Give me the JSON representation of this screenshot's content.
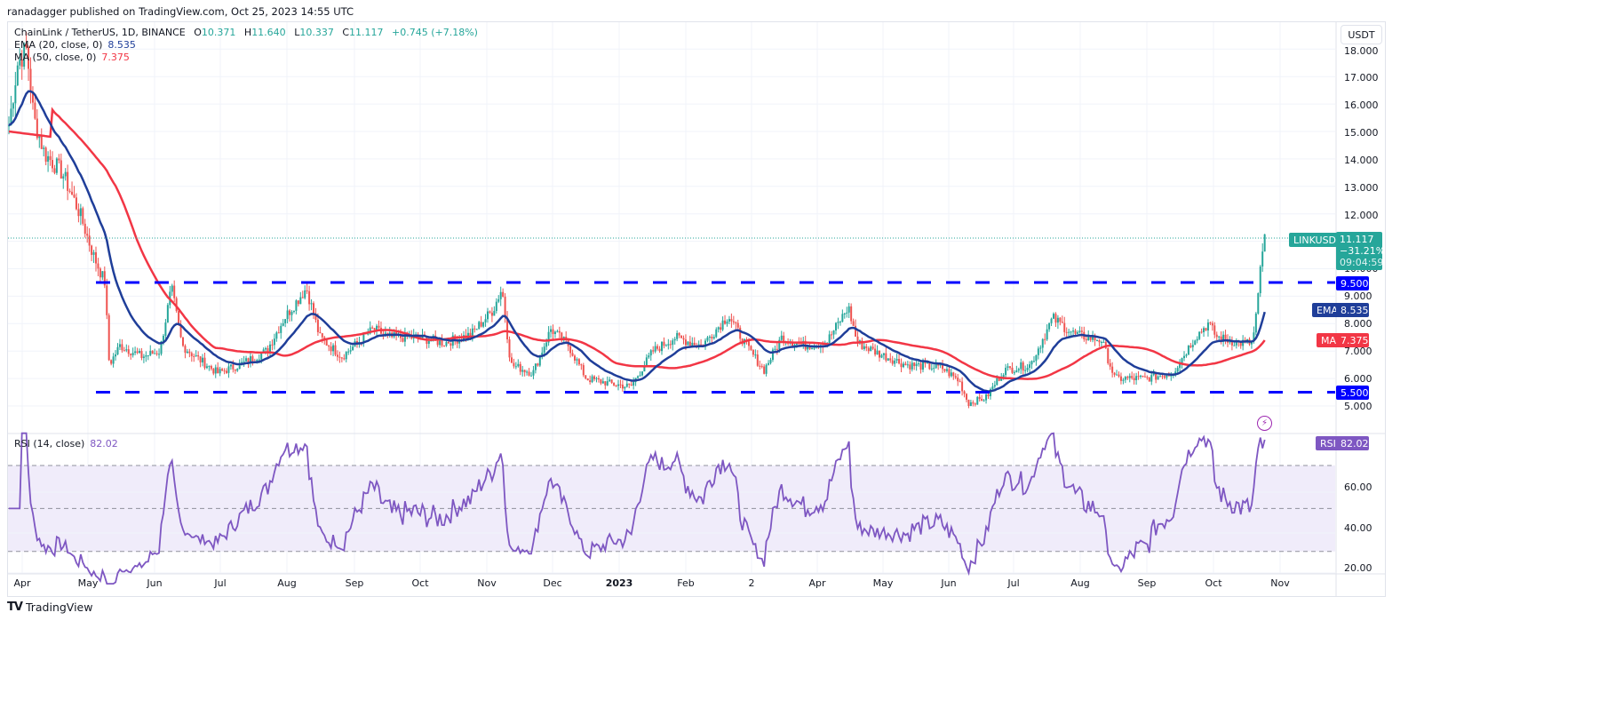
{
  "header": {
    "publisher_line": "ranadagger published on TradingView.com, Oct 25, 2023 14:55 UTC"
  },
  "legend": {
    "symbol": "ChainLink / TetherUS, 1D, BINANCE",
    "open_label": "O",
    "open": "10.371",
    "high_label": "H",
    "high": "11.640",
    "low_label": "L",
    "low": "10.337",
    "close_label": "C",
    "close": "11.117",
    "change": "+0.745 (+7.18%)",
    "ema_label": "EMA (20, close, 0)",
    "ema_value": "8.535",
    "ma_label": "MA (50, close, 0)",
    "ma_value": "7.375",
    "rsi_label": "RSI (14, close)",
    "rsi_value": "82.02"
  },
  "price_axis": {
    "currency": "USDT",
    "ticks": [
      "18.000",
      "17.000",
      "16.000",
      "15.000",
      "14.000",
      "13.000",
      "12.000",
      "10.000",
      "9.000",
      "8.000",
      "7.000",
      "6.000",
      "5.000"
    ]
  },
  "rsi_axis": {
    "ticks": [
      "60.00",
      "40.00",
      "20.00"
    ]
  },
  "time_axis": {
    "labels": [
      "Apr",
      "May",
      "Jun",
      "Jul",
      "Aug",
      "Sep",
      "Oct",
      "Nov",
      "Dec",
      "2023",
      "Feb",
      "2",
      "Apr",
      "May",
      "Jun",
      "Jul",
      "Aug",
      "Sep",
      "Oct",
      "Nov"
    ]
  },
  "tags": {
    "symbol_tag": "LINKUSDT",
    "last_price": "11.117",
    "last_change": "−31.21%",
    "countdown": "09:04:59",
    "resistance": "9.500",
    "support": "5.500",
    "ema_tag_label": "EMA",
    "ema_tag_value": "8.535",
    "ma_tag_label": "MA",
    "ma_tag_value": "7.375",
    "rsi_tag_label": "RSI",
    "rsi_tag_value": "82.02"
  },
  "colors": {
    "up": "#26a69a",
    "down": "#ef5350",
    "ema": "#1f3e99",
    "ma": "#f23645",
    "level": "#0000ff",
    "rsi": "#7e57c2",
    "rsi_band": "#f0ecfa",
    "grid": "#f0f3fa"
  },
  "footer": {
    "brand": "TradingView",
    "logo": "TV"
  },
  "chart_data": {
    "type": "candlestick",
    "title": "ChainLink / TetherUS, 1D, BINANCE",
    "symbol": "LINKUSDT",
    "timeframe": "1D",
    "ohlc_last": {
      "open": 10.371,
      "high": 11.64,
      "low": 10.337,
      "close": 11.117,
      "change": 0.745,
      "change_pct": 7.18
    },
    "x_range": [
      "Apr 2022",
      "Nov 2023"
    ],
    "y_range": [
      4.5,
      18.5
    ],
    "y_ticks": [
      5,
      6,
      7,
      8,
      9,
      10,
      11,
      12,
      13,
      14,
      15,
      16,
      17,
      18
    ],
    "horizontal_levels": [
      {
        "label": "resistance",
        "value": 9.5,
        "style": "dashed",
        "color": "#0000ff"
      },
      {
        "label": "support",
        "value": 5.5,
        "style": "dashed",
        "color": "#0000ff"
      }
    ],
    "monthly_close_estimates": {
      "x": [
        "Apr 2022",
        "May 2022",
        "Jun 2022",
        "Jul 2022",
        "Aug 2022",
        "Sep 2022",
        "Oct 2022",
        "Nov 2022",
        "Dec 2022",
        "Jan 2023",
        "Feb 2023",
        "Mar 2023",
        "Apr 2023",
        "May 2023",
        "Jun 2023",
        "Jul 2023",
        "Aug 2023",
        "Sep 2023",
        "Oct 2023"
      ],
      "values": [
        16.5,
        7.0,
        6.5,
        6.3,
        8.6,
        7.0,
        7.2,
        7.8,
        5.9,
        6.8,
        7.6,
        7.1,
        7.1,
        6.5,
        5.3,
        6.3,
        7.3,
        6.2,
        11.1
      ]
    },
    "series": [
      {
        "name": "EMA (20, close, 0)",
        "last": 8.535,
        "color": "#1f3e99"
      },
      {
        "name": "MA (50, close, 0)",
        "last": 7.375,
        "color": "#f23645"
      },
      {
        "name": "RSI (14, close)",
        "last": 82.02,
        "color": "#7e57c2",
        "bands": [
          30,
          50,
          70
        ],
        "y_ticks": [
          20,
          40,
          60
        ]
      }
    ],
    "last_price_pct_label": "-31.21%",
    "countdown": "09:04:59",
    "xlabel": "",
    "ylabel": "USDT",
    "grid": true
  }
}
